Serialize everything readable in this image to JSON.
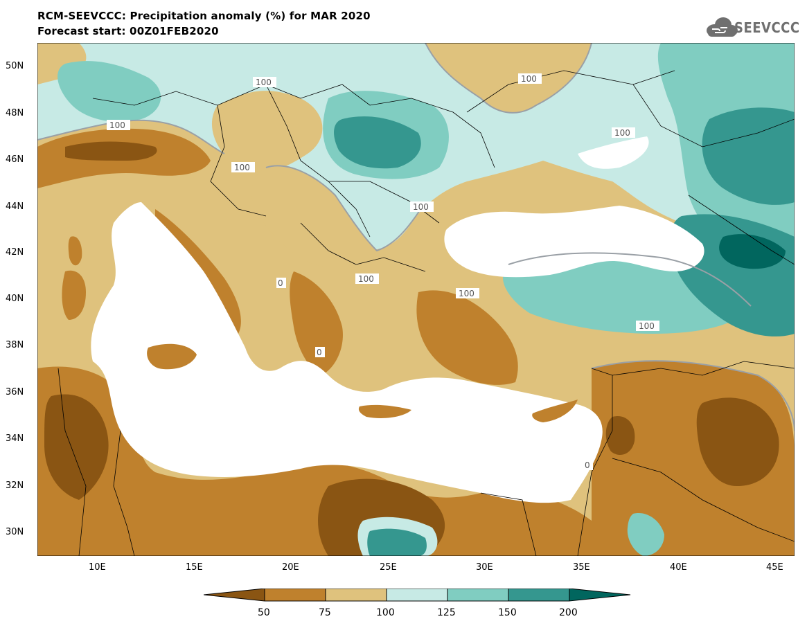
{
  "header": {
    "title": "RCM-SEEVCCC: Precipitation anomaly (%) for MAR 2020",
    "subtitle": "Forecast start: 00Z01FEB2020",
    "logo_text": "SEEVCCC"
  },
  "map": {
    "lat_labels": [
      "50N",
      "48N",
      "46N",
      "44N",
      "42N",
      "40N",
      "38N",
      "36N",
      "34N",
      "32N",
      "30N"
    ],
    "lon_labels": [
      "10E",
      "15E",
      "20E",
      "25E",
      "30E",
      "35E",
      "40E",
      "45E"
    ],
    "contour_label": "100",
    "partial_contour_label": "0"
  },
  "legend": {
    "colors": {
      "below_50": "#8a5513",
      "c50_75": "#bf812d",
      "c75_100": "#dfc27d",
      "c100_125": "#c7eae5",
      "c125_150": "#80cdc1",
      "c150_200": "#35978f",
      "above_200": "#01665e"
    },
    "labels": [
      "50",
      "75",
      "100",
      "125",
      "150",
      "200"
    ]
  }
}
